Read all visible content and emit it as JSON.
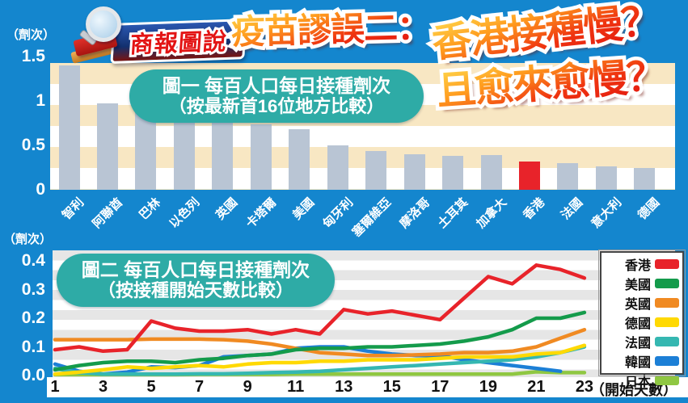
{
  "header": {
    "logo_text": "商報圖說",
    "headline_prefix": "疫苗謬誤二：",
    "headline_line1": "香港接種慢？",
    "headline_line2": "且愈來愈慢？"
  },
  "chart1": {
    "unit": "（劑次）",
    "title_line1": "圖一  每百人口每日接種劑次",
    "title_line2": "（按最新首16位地方比較）",
    "y_ticks": [
      "1.5",
      "1",
      "0.5",
      "0"
    ]
  },
  "chart2": {
    "unit": "（劑次）",
    "title_line1": "圖二  每百人口每日接種劑次",
    "title_line2": "（按接種開始天數比較）",
    "y_ticks": [
      "0.4",
      "0.3",
      "0.2",
      "0.1",
      "0.0"
    ],
    "x_ticks": [
      "1",
      "3",
      "5",
      "7",
      "9",
      "11",
      "13",
      "15",
      "17",
      "19",
      "21",
      "23"
    ],
    "x_axis_label": "（開始天數）"
  },
  "colors": {
    "background": "#1486ce",
    "panel_stripe_cream": "#f8e7c3",
    "panel_stripe_grey": "#e6e6e6",
    "title_pill": "#2eaba6",
    "bar_default": "#b9c5d4",
    "bar_highlight": "#e8232a",
    "headline_red": "#e81b12"
  },
  "chart_data": [
    {
      "type": "bar",
      "title": "圖一 每百人口每日接種劑次（按最新首16位地方比較）",
      "ylabel": "劑次",
      "ylim": [
        0,
        1.5
      ],
      "y_tick_step": 0.5,
      "categories": [
        "智利",
        "阿聯酋",
        "巴林",
        "以色列",
        "英國",
        "卡塔爾",
        "美國",
        "匈牙利",
        "塞爾維亞",
        "摩洛哥",
        "土耳其",
        "加拿大",
        "香港",
        "法國",
        "意大利",
        "德國"
      ],
      "values": [
        1.44,
        1.0,
        0.93,
        0.84,
        0.81,
        0.76,
        0.7,
        0.51,
        0.45,
        0.41,
        0.39,
        0.4,
        0.33,
        0.31,
        0.27,
        0.25
      ],
      "bar_color": "#b9c5d4",
      "highlight": {
        "category": "香港",
        "color": "#e8232a"
      }
    },
    {
      "type": "line",
      "title": "圖二 每百人口每日接種劑次（按接種開始天數比較）",
      "xlabel": "開始天數",
      "ylabel": "劑次",
      "ylim": [
        0,
        0.4
      ],
      "xlim": [
        1,
        23
      ],
      "legend_position": "right",
      "x": [
        1,
        2,
        3,
        4,
        5,
        6,
        7,
        8,
        9,
        10,
        11,
        12,
        13,
        14,
        15,
        16,
        17,
        18,
        19,
        20,
        21,
        22,
        23
      ],
      "series": [
        {
          "name": "香港",
          "color": "#e8232a",
          "values": [
            0.09,
            0.1,
            0.085,
            0.09,
            0.19,
            0.165,
            0.155,
            0.155,
            0.16,
            0.145,
            0.16,
            0.145,
            0.23,
            0.215,
            0.225,
            0.21,
            0.195,
            0.27,
            0.345,
            0.32,
            0.385,
            0.37,
            0.34
          ]
        },
        {
          "name": "美國",
          "color": "#149b4b",
          "values": [
            0.02,
            0.035,
            0.045,
            0.05,
            0.05,
            0.045,
            0.055,
            0.06,
            0.07,
            0.075,
            0.09,
            0.095,
            0.095,
            0.1,
            0.1,
            0.105,
            0.11,
            0.12,
            0.135,
            0.16,
            0.2,
            0.2,
            0.22
          ]
        },
        {
          "name": "英國",
          "color": "#f08a22",
          "values": [
            0.125,
            0.125,
            0.125,
            0.125,
            0.127,
            0.127,
            0.127,
            0.125,
            0.12,
            0.11,
            0.095,
            0.08,
            0.075,
            0.07,
            0.07,
            0.072,
            0.075,
            0.08,
            0.08,
            0.085,
            0.1,
            0.13,
            0.16
          ]
        },
        {
          "name": "德國",
          "color": "#ffd903",
          "values": [
            0.005,
            0.012,
            0.02,
            0.03,
            0.025,
            0.03,
            0.035,
            0.03,
            0.04,
            0.045,
            0.045,
            0.05,
            0.05,
            0.055,
            0.055,
            0.055,
            0.06,
            0.065,
            0.065,
            0.065,
            0.075,
            0.08,
            0.105
          ]
        },
        {
          "name": "法國",
          "color": "#35b7b1",
          "values": [
            0.025,
            0.01,
            0.005,
            0.005,
            0.005,
            0.005,
            0.006,
            0.006,
            0.008,
            0.01,
            0.012,
            0.015,
            0.02,
            0.025,
            0.03,
            0.035,
            0.04,
            0.045,
            0.05,
            0.055,
            0.065,
            0.08,
            0.1
          ]
        },
        {
          "name": "韓國",
          "color": "#1c7fd6",
          "values": [
            0.04,
            0.015,
            0.005,
            0.012,
            0.03,
            0.028,
            0.035,
            0.065,
            0.07,
            0.075,
            0.095,
            0.1,
            0.1,
            0.085,
            0.075,
            0.07,
            0.07,
            0.055,
            0.045,
            0.035,
            0.025,
            0.015,
            null
          ]
        },
        {
          "name": "日本",
          "color": "#8fc742",
          "values": [
            0.003,
            0.003,
            0.003,
            0.003,
            0.003,
            0.003,
            0.004,
            0.004,
            0.004,
            0.004,
            0.005,
            0.005,
            0.005,
            0.005,
            0.005,
            0.005,
            0.005,
            0.005,
            0.005,
            0.005,
            0.013,
            0.01,
            0.01
          ]
        }
      ]
    }
  ]
}
